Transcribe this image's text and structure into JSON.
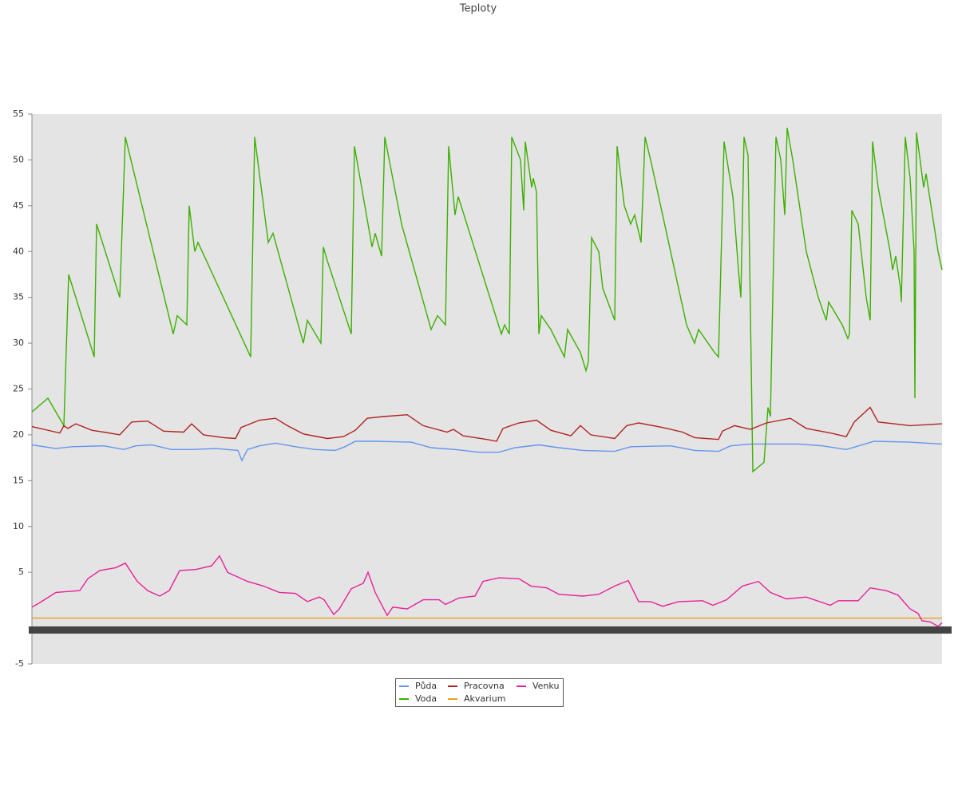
{
  "chart_data": {
    "type": "line",
    "title": "Teploty",
    "xlim": [
      0,
      1140
    ],
    "ylim": [
      -5,
      55
    ],
    "yticks": [
      -5,
      5,
      10,
      15,
      20,
      25,
      30,
      35,
      40,
      45,
      50,
      55
    ],
    "series": [
      {
        "name": "Půda",
        "color": "#6495ed",
        "x": [
          0,
          30,
          50,
          90,
          115,
          130,
          150,
          175,
          200,
          230,
          258,
          263,
          270,
          285,
          305,
          330,
          355,
          380,
          392,
          405,
          430,
          475,
          500,
          530,
          560,
          585,
          605,
          635,
          660,
          690,
          730,
          750,
          800,
          830,
          860,
          875,
          900,
          960,
          990,
          1020,
          1055,
          1100,
          1140
        ],
        "values": [
          18.9,
          18.5,
          18.7,
          18.8,
          18.4,
          18.8,
          18.9,
          18.4,
          18.4,
          18.5,
          18.3,
          17.2,
          18.4,
          18.8,
          19.1,
          18.7,
          18.4,
          18.3,
          18.7,
          19.3,
          19.3,
          19.2,
          18.6,
          18.4,
          18.1,
          18.1,
          18.6,
          18.9,
          18.6,
          18.3,
          18.2,
          18.7,
          18.8,
          18.3,
          18.2,
          18.8,
          19,
          19,
          18.8,
          18.4,
          19.3,
          19.2,
          19
        ]
      },
      {
        "name": "Voda",
        "color": "#3cb000",
        "x": [
          0,
          20,
          40,
          46,
          78,
          81,
          110,
          117,
          177,
          182,
          194,
          197,
          204,
          208,
          274,
          279,
          296,
          302,
          340,
          345,
          362,
          365,
          370,
          400,
          404,
          426,
          430,
          438,
          442,
          463,
          500,
          508,
          518,
          522,
          530,
          534,
          588,
          592,
          598,
          601,
          612,
          616,
          618,
          626,
          628,
          632,
          635,
          638,
          650,
          667,
          671,
          687,
          694,
          697,
          701,
          710,
          715,
          730,
          733,
          742,
          750,
          755,
          763,
          768,
          775,
          790,
          805,
          820,
          830,
          835,
          855,
          860,
          867,
          878,
          885,
          888,
          892,
          897,
          903,
          917,
          922,
          925,
          932,
          938,
          943,
          946,
          953,
          970,
          985,
          995,
          998,
          1015,
          1022,
          1024,
          1027,
          1035,
          1045,
          1050,
          1053,
          1060,
          1075,
          1078,
          1082,
          1088,
          1089,
          1094,
          1100,
          1105,
          1106,
          1108,
          1117,
          1120,
          1135,
          1140
        ],
        "values": [
          22.5,
          24,
          21,
          37.5,
          28.5,
          43,
          35,
          52.5,
          31,
          33,
          32,
          45,
          40,
          41,
          28.5,
          52.5,
          41,
          42,
          30,
          32.5,
          30,
          40.5,
          39,
          31,
          51.5,
          40.5,
          42,
          39.5,
          52.5,
          43,
          31.5,
          33,
          32,
          51.5,
          44,
          46,
          31,
          32,
          31,
          52.5,
          50,
          44.5,
          52,
          47,
          48,
          46.5,
          31,
          33,
          31.5,
          28.5,
          31.5,
          29,
          27,
          28,
          41.5,
          40,
          36,
          32.5,
          51.5,
          45,
          43,
          44,
          41,
          52.5,
          50,
          44,
          38,
          32,
          30,
          31.5,
          29,
          28.5,
          52,
          46,
          38,
          35,
          52.5,
          50.5,
          16,
          17,
          23,
          22,
          52.5,
          50,
          44,
          53.5,
          50,
          40,
          35,
          32.5,
          34.5,
          32,
          30.5,
          31,
          44.5,
          43,
          35,
          32.5,
          52,
          47,
          40,
          38,
          39.5,
          36,
          34.5,
          52.5,
          48,
          40,
          24,
          53,
          47,
          48.5,
          40,
          38
        ]
      },
      {
        "name": "Pracovna",
        "color": "#b22222",
        "x": [
          0,
          30,
          35,
          40,
          45,
          55,
          75,
          90,
          110,
          125,
          145,
          165,
          190,
          200,
          215,
          240,
          255,
          262,
          285,
          305,
          320,
          340,
          370,
          390,
          405,
          420,
          440,
          470,
          490,
          520,
          528,
          540,
          570,
          582,
          590,
          610,
          632,
          650,
          675,
          687,
          700,
          730,
          745,
          760,
          790,
          815,
          830,
          860,
          865,
          880,
          900,
          920,
          950,
          970,
          1000,
          1020,
          1030,
          1050,
          1060,
          1080,
          1100,
          1140
        ],
        "values": [
          20.9,
          20.3,
          20.2,
          21,
          20.7,
          21.2,
          20.5,
          20.3,
          20,
          21.4,
          21.5,
          20.4,
          20.3,
          21.2,
          20,
          19.7,
          19.6,
          20.8,
          21.6,
          21.8,
          21,
          20.1,
          19.6,
          19.8,
          20.5,
          21.8,
          22,
          22.2,
          21,
          20.3,
          20.6,
          19.9,
          19.5,
          19.3,
          20.7,
          21.3,
          21.6,
          20.5,
          19.9,
          21,
          20,
          19.6,
          21,
          21.3,
          20.8,
          20.3,
          19.7,
          19.5,
          20.4,
          21,
          20.6,
          21.3,
          21.8,
          20.7,
          20.2,
          19.8,
          21.4,
          23,
          21.4,
          21.2,
          21,
          21.2
        ]
      },
      {
        "name": "Akvarium",
        "color": "#e8a020",
        "x": [
          0,
          1140
        ],
        "values": [
          0,
          0
        ]
      },
      {
        "name": "Venku",
        "color": "#e8209a",
        "x": [
          0,
          10,
          30,
          60,
          70,
          85,
          105,
          117,
          132,
          145,
          160,
          172,
          185,
          205,
          225,
          235,
          245,
          270,
          290,
          310,
          330,
          345,
          360,
          366,
          378,
          385,
          400,
          415,
          421,
          430,
          445,
          452,
          470,
          490,
          510,
          518,
          535,
          555,
          565,
          585,
          610,
          625,
          645,
          660,
          690,
          710,
          730,
          747,
          760,
          775,
          790,
          810,
          840,
          853,
          870,
          890,
          910,
          925,
          945,
          970,
          1000,
          1010,
          1035,
          1050,
          1070,
          1085,
          1100,
          1110,
          1115,
          1125,
          1135,
          1140
        ],
        "values": [
          1.2,
          1.7,
          2.8,
          3,
          4.3,
          5.2,
          5.5,
          6,
          4,
          3,
          2.4,
          3,
          5.2,
          5.3,
          5.7,
          6.8,
          5,
          4,
          3.5,
          2.8,
          2.7,
          1.8,
          2.3,
          2,
          0.4,
          1,
          3.2,
          3.8,
          5,
          2.8,
          0.3,
          1.2,
          1,
          2,
          2,
          1.5,
          2.2,
          2.4,
          4,
          4.4,
          4.3,
          3.5,
          3.3,
          2.6,
          2.4,
          2.6,
          3.5,
          4.1,
          1.8,
          1.8,
          1.3,
          1.8,
          1.9,
          1.4,
          2,
          3.5,
          4,
          2.8,
          2.1,
          2.3,
          1.4,
          1.9,
          1.9,
          3.3,
          3,
          2.5,
          1,
          0.5,
          -0.3,
          -0.4,
          -0.9,
          -0.5
        ]
      }
    ]
  }
}
